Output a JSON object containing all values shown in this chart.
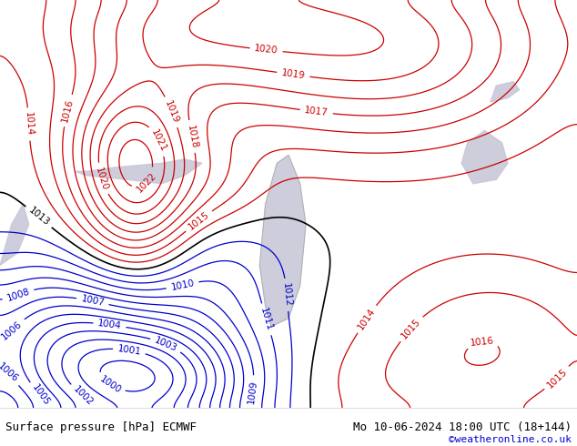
{
  "title_left": "Surface pressure [hPa] ECMWF",
  "title_right": "Mo 10-06-2024 18:00 UTC (18+144)",
  "credit": "©weatheronline.co.uk",
  "bg_color": "#b0e080",
  "land_color": "#b8e878",
  "water_color": "#c8c8d8",
  "footer_bg": "#ffffff",
  "footer_text_color": "#000000",
  "credit_color": "#0000cc",
  "contour_black_color": "#000000",
  "contour_red_color": "#cc0000",
  "contour_blue_color": "#0000cc",
  "label_fontsize": 7.5,
  "footer_fontsize": 9,
  "figsize": [
    6.34,
    4.9
  ],
  "dpi": 100,
  "pressure_base": 1013,
  "xlim": [
    0,
    10
  ],
  "ylim": [
    0,
    10
  ]
}
